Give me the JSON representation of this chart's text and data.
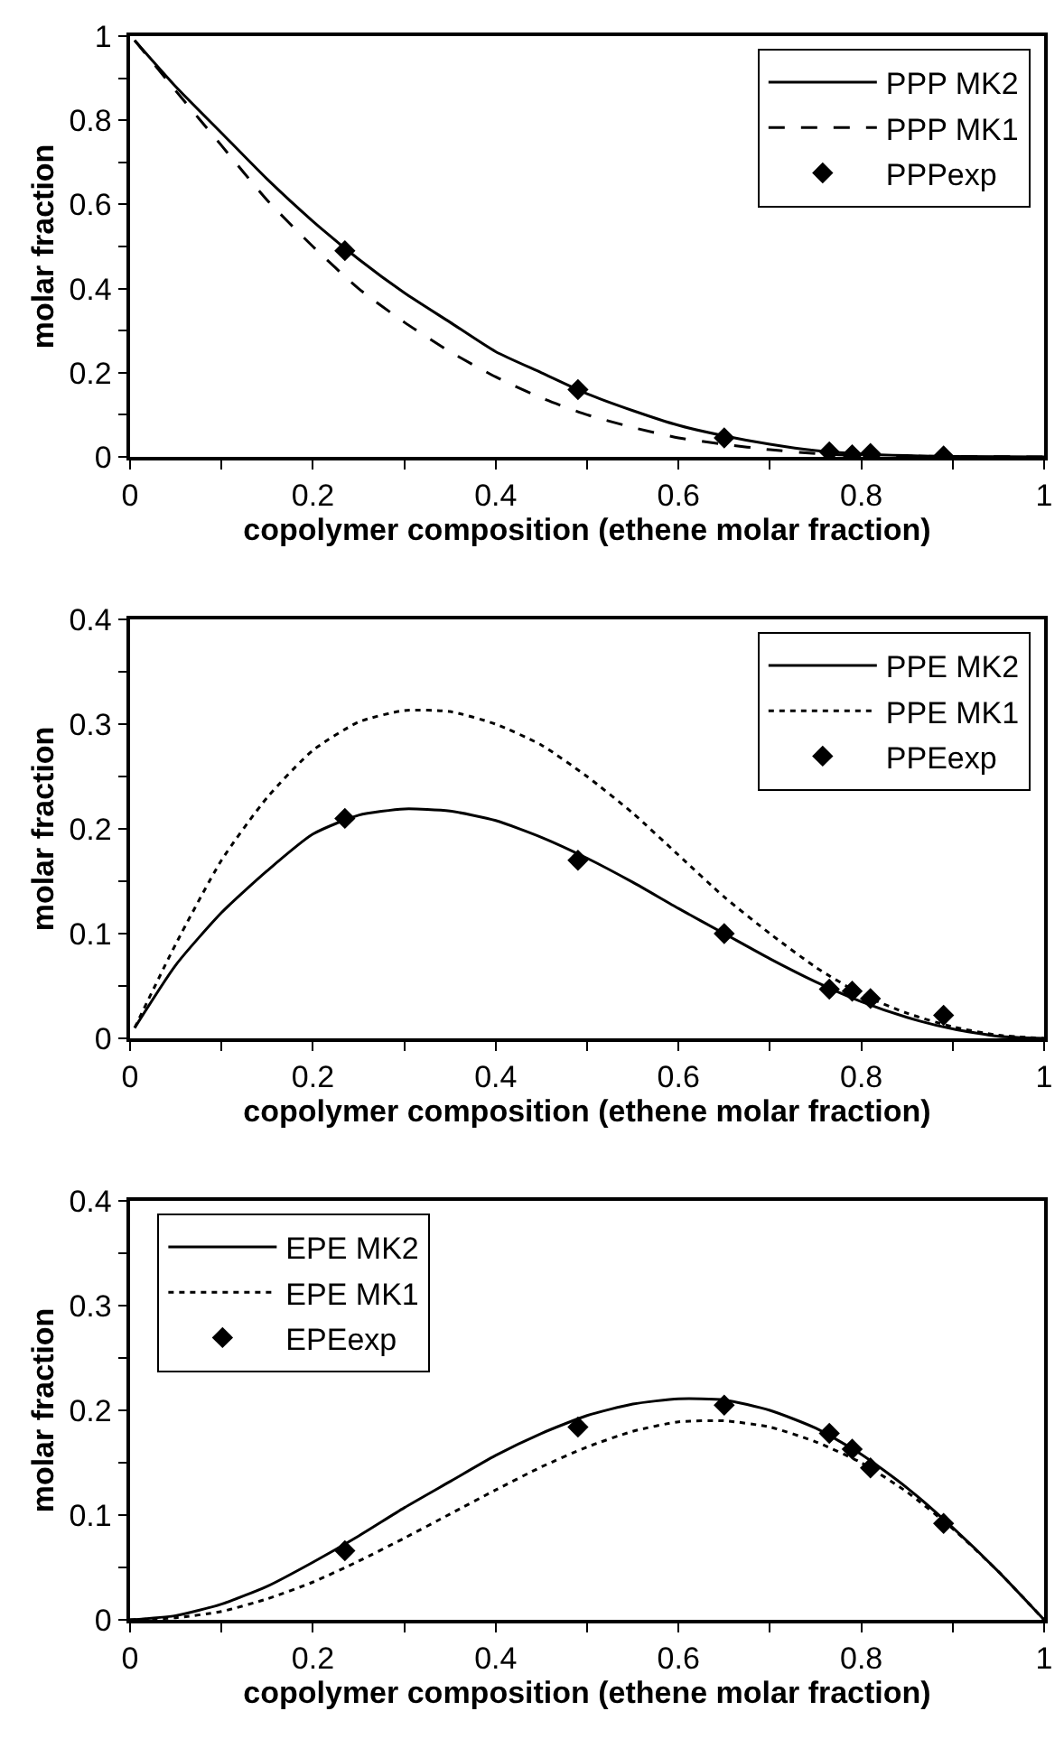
{
  "chart_data": [
    {
      "type": "line",
      "xlabel": "copolymer composition (ethene molar fraction)",
      "ylabel": "molar fraction",
      "xlim": [
        0,
        1
      ],
      "ylim": [
        0,
        1
      ],
      "legend": "top right",
      "xticks": [
        0,
        {
          "value": 0.1,
          "label": null
        },
        0.2,
        {
          "value": 0.3,
          "label": null
        },
        0.4,
        {
          "value": 0.5,
          "label": null
        },
        0.6,
        {
          "value": 0.7,
          "label": null
        },
        0.8,
        {
          "value": 0.9,
          "label": null
        },
        1
      ],
      "yticks": [
        0,
        {
          "value": 0.1,
          "label": null
        },
        0.2,
        {
          "value": 0.3,
          "label": null
        },
        0.4,
        {
          "value": 0.5,
          "label": null
        },
        0.6,
        {
          "value": 0.7,
          "label": null
        },
        0.8,
        {
          "value": 0.9,
          "label": null
        },
        1
      ],
      "series": [
        {
          "name": "PPP MK2",
          "line_style": "solid",
          "color": "#000000",
          "x": [
            0.005,
            0.05,
            0.1,
            0.15,
            0.2,
            0.25,
            0.3,
            0.35,
            0.4,
            0.45,
            0.5,
            0.55,
            0.6,
            0.65,
            0.7,
            0.75,
            0.8,
            0.85,
            0.9,
            1
          ],
          "values": [
            0.99,
            0.88,
            0.77,
            0.66,
            0.56,
            0.47,
            0.39,
            0.32,
            0.25,
            0.2,
            0.15,
            0.11,
            0.075,
            0.05,
            0.03,
            0.015,
            0.007,
            0.003,
            0.001,
            0
          ]
        },
        {
          "name": "PPP MK1",
          "line_style": "dashed",
          "color": "#000000",
          "x": [
            0.005,
            0.05,
            0.1,
            0.15,
            0.2,
            0.25,
            0.3,
            0.35,
            0.4,
            0.45,
            0.5,
            0.55,
            0.6,
            0.65,
            0.7,
            0.75,
            0.8,
            0.9,
            1
          ],
          "values": [
            0.99,
            0.87,
            0.74,
            0.61,
            0.5,
            0.4,
            0.32,
            0.25,
            0.19,
            0.14,
            0.1,
            0.07,
            0.045,
            0.03,
            0.017,
            0.008,
            0.003,
            0.001,
            0
          ]
        },
        {
          "name": "PPPexp",
          "type": "scatter",
          "marker": "diamond",
          "color": "#000000",
          "x": [
            0.235,
            0.49,
            0.65,
            0.765,
            0.79,
            0.81,
            0.89
          ],
          "values": [
            0.49,
            0.16,
            0.045,
            0.012,
            0.005,
            0.008,
            0.002
          ]
        }
      ]
    },
    {
      "type": "line",
      "xlabel": "copolymer composition (ethene molar fraction)",
      "ylabel": "molar fraction",
      "xlim": [
        0,
        1
      ],
      "ylim": [
        0,
        0.4
      ],
      "legend": "top right",
      "xticks": [
        0,
        {
          "value": 0.1,
          "label": null
        },
        0.2,
        {
          "value": 0.3,
          "label": null
        },
        0.4,
        {
          "value": 0.5,
          "label": null
        },
        0.6,
        {
          "value": 0.7,
          "label": null
        },
        0.8,
        {
          "value": 0.9,
          "label": null
        },
        1
      ],
      "yticks": [
        0,
        {
          "value": 0.05,
          "label": null
        },
        0.1,
        {
          "value": 0.15,
          "label": null
        },
        0.2,
        {
          "value": 0.25,
          "label": null
        },
        0.3,
        {
          "value": 0.35,
          "label": null
        },
        0.4
      ],
      "series": [
        {
          "name": "PPE MK2",
          "line_style": "solid",
          "color": "#000000",
          "x": [
            0.005,
            0.05,
            0.1,
            0.15,
            0.2,
            0.25,
            0.3,
            0.35,
            0.4,
            0.45,
            0.5,
            0.55,
            0.6,
            0.65,
            0.7,
            0.75,
            0.8,
            0.85,
            0.9,
            0.95,
            1
          ],
          "values": [
            0.01,
            0.07,
            0.12,
            0.16,
            0.195,
            0.213,
            0.219,
            0.217,
            0.208,
            0.192,
            0.172,
            0.149,
            0.124,
            0.1,
            0.076,
            0.054,
            0.035,
            0.02,
            0.009,
            0.002,
            0
          ]
        },
        {
          "name": "PPE MK1",
          "line_style": "dotted",
          "color": "#000000",
          "x": [
            0.005,
            0.05,
            0.1,
            0.15,
            0.2,
            0.25,
            0.3,
            0.35,
            0.4,
            0.45,
            0.5,
            0.55,
            0.6,
            0.65,
            0.7,
            0.75,
            0.8,
            0.85,
            0.9,
            0.95,
            1
          ],
          "values": [
            0.01,
            0.09,
            0.17,
            0.23,
            0.275,
            0.302,
            0.313,
            0.312,
            0.3,
            0.28,
            0.25,
            0.215,
            0.175,
            0.135,
            0.1,
            0.068,
            0.042,
            0.024,
            0.011,
            0.003,
            0
          ]
        },
        {
          "name": "PPEexp",
          "type": "scatter",
          "marker": "diamond",
          "color": "#000000",
          "x": [
            0.235,
            0.49,
            0.65,
            0.765,
            0.79,
            0.81,
            0.89
          ],
          "values": [
            0.21,
            0.17,
            0.1,
            0.047,
            0.045,
            0.038,
            0.022
          ]
        }
      ]
    },
    {
      "type": "line",
      "xlabel": "copolymer composition (ethene molar fraction)",
      "ylabel": "molar fraction",
      "xlim": [
        0,
        1
      ],
      "ylim": [
        0,
        0.4
      ],
      "legend": "top left",
      "xticks": [
        0,
        {
          "value": 0.1,
          "label": null
        },
        0.2,
        {
          "value": 0.3,
          "label": null
        },
        0.4,
        {
          "value": 0.5,
          "label": null
        },
        0.6,
        {
          "value": 0.7,
          "label": null
        },
        0.8,
        {
          "value": 0.9,
          "label": null
        },
        1
      ],
      "yticks": [
        0,
        {
          "value": 0.05,
          "label": null
        },
        0.1,
        {
          "value": 0.15,
          "label": null
        },
        0.2,
        {
          "value": 0.25,
          "label": null
        },
        0.3,
        {
          "value": 0.35,
          "label": null
        },
        0.4
      ],
      "series": [
        {
          "name": "EPE MK2",
          "line_style": "solid",
          "color": "#000000",
          "x": [
            0,
            0.05,
            0.1,
            0.15,
            0.2,
            0.25,
            0.3,
            0.35,
            0.4,
            0.45,
            0.5,
            0.55,
            0.6,
            0.65,
            0.7,
            0.75,
            0.8,
            0.85,
            0.9,
            0.95,
            1
          ],
          "values": [
            0,
            0.004,
            0.015,
            0.032,
            0.055,
            0.08,
            0.107,
            0.132,
            0.157,
            0.178,
            0.195,
            0.206,
            0.211,
            0.21,
            0.2,
            0.183,
            0.158,
            0.126,
            0.088,
            0.046,
            0
          ]
        },
        {
          "name": "EPE MK1",
          "line_style": "dotted",
          "color": "#000000",
          "x": [
            0,
            0.05,
            0.1,
            0.15,
            0.2,
            0.25,
            0.3,
            0.35,
            0.4,
            0.45,
            0.5,
            0.55,
            0.6,
            0.65,
            0.7,
            0.75,
            0.8,
            0.85,
            0.9,
            0.95,
            1
          ],
          "values": [
            0,
            0.002,
            0.008,
            0.02,
            0.036,
            0.056,
            0.078,
            0.101,
            0.124,
            0.146,
            0.165,
            0.18,
            0.189,
            0.19,
            0.184,
            0.17,
            0.15,
            0.122,
            0.087,
            0.046,
            0
          ]
        },
        {
          "name": "EPEexp",
          "type": "scatter",
          "marker": "diamond",
          "color": "#000000",
          "x": [
            0.235,
            0.49,
            0.65,
            0.765,
            0.79,
            0.81,
            0.89
          ],
          "values": [
            0.066,
            0.184,
            0.205,
            0.178,
            0.163,
            0.145,
            0.092
          ]
        }
      ]
    }
  ]
}
